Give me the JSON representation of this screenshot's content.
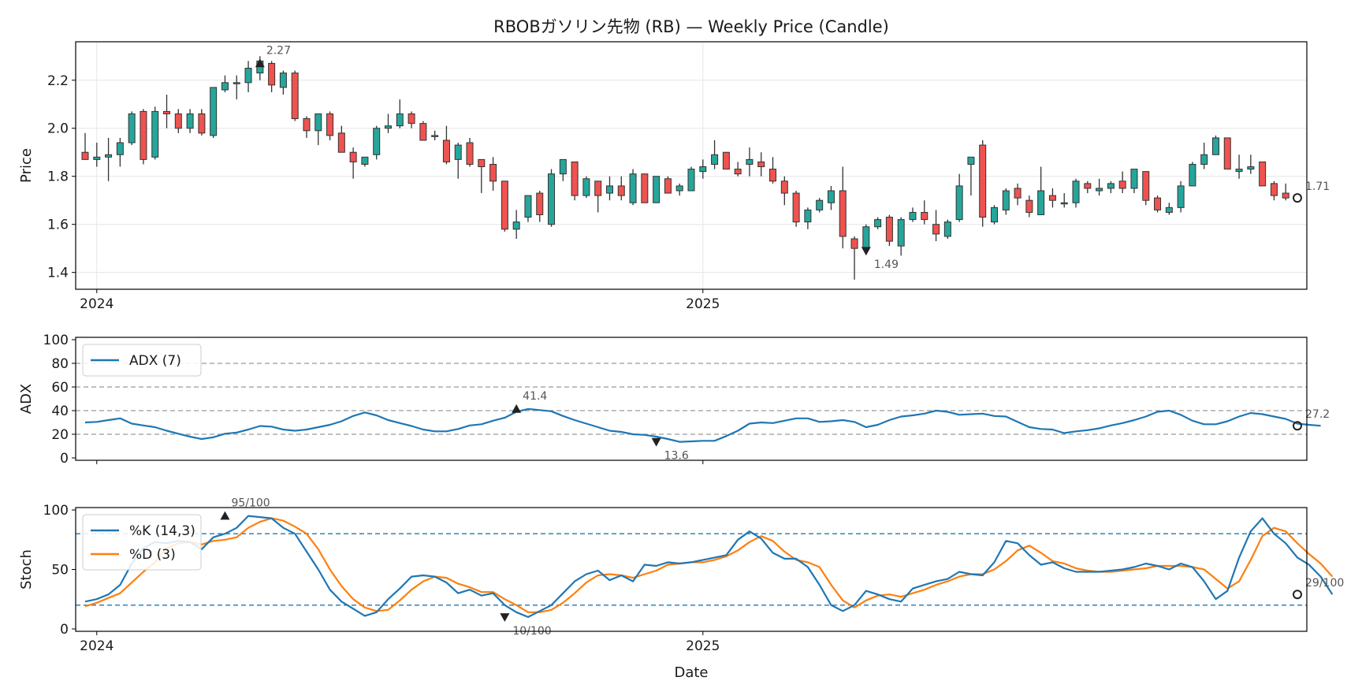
{
  "title": "RBOBガソリン先物 (RB) — Weekly Price (Candle)",
  "colors": {
    "up": "#26a69a",
    "down": "#ef5350",
    "wick": "#333333",
    "adx": "#1f77b4",
    "k": "#1f77b4",
    "d": "#ff7f0e",
    "ref": "#999999",
    "stoch_ref": "#1f77b4"
  },
  "chart_data": [
    {
      "type": "candlestick",
      "ylabel": "Price",
      "ylim": [
        1.33,
        2.36
      ],
      "yticks": [
        "1.4",
        "1.6",
        "1.8",
        "2.0",
        "2.2"
      ],
      "xticks": [
        {
          "index": 1,
          "label": "2024"
        },
        {
          "index": 53,
          "label": "2025"
        }
      ],
      "grid": true,
      "candles": [
        {
          "o": 1.9,
          "h": 1.98,
          "l": 1.87,
          "c": 1.87
        },
        {
          "o": 1.87,
          "h": 1.94,
          "l": 1.84,
          "c": 1.88
        },
        {
          "o": 1.88,
          "h": 1.96,
          "l": 1.78,
          "c": 1.89
        },
        {
          "o": 1.89,
          "h": 1.96,
          "l": 1.84,
          "c": 1.94
        },
        {
          "o": 1.94,
          "h": 2.07,
          "l": 1.93,
          "c": 2.06
        },
        {
          "o": 2.07,
          "h": 2.08,
          "l": 1.85,
          "c": 1.87
        },
        {
          "o": 1.88,
          "h": 2.09,
          "l": 1.87,
          "c": 2.07
        },
        {
          "o": 2.07,
          "h": 2.14,
          "l": 2.0,
          "c": 2.06
        },
        {
          "o": 2.06,
          "h": 2.08,
          "l": 1.98,
          "c": 2.0
        },
        {
          "o": 2.0,
          "h": 2.08,
          "l": 1.98,
          "c": 2.06
        },
        {
          "o": 2.06,
          "h": 2.08,
          "l": 1.97,
          "c": 1.98
        },
        {
          "o": 1.97,
          "h": 2.17,
          "l": 1.96,
          "c": 2.17
        },
        {
          "o": 2.16,
          "h": 2.22,
          "l": 2.15,
          "c": 2.19
        },
        {
          "o": 2.19,
          "h": 2.22,
          "l": 2.12,
          "c": 2.19
        },
        {
          "o": 2.19,
          "h": 2.28,
          "l": 2.15,
          "c": 2.25
        },
        {
          "o": 2.23,
          "h": 2.3,
          "l": 2.2,
          "c": 2.28
        },
        {
          "o": 2.27,
          "h": 2.28,
          "l": 2.15,
          "c": 2.18
        },
        {
          "o": 2.17,
          "h": 2.24,
          "l": 2.14,
          "c": 2.23
        },
        {
          "o": 2.23,
          "h": 2.24,
          "l": 2.03,
          "c": 2.04
        },
        {
          "o": 2.04,
          "h": 2.05,
          "l": 1.96,
          "c": 1.99
        },
        {
          "o": 1.99,
          "h": 2.06,
          "l": 1.93,
          "c": 2.06
        },
        {
          "o": 2.06,
          "h": 2.07,
          "l": 1.95,
          "c": 1.97
        },
        {
          "o": 1.98,
          "h": 2.01,
          "l": 1.9,
          "c": 1.9
        },
        {
          "o": 1.9,
          "h": 1.92,
          "l": 1.79,
          "c": 1.86
        },
        {
          "o": 1.85,
          "h": 1.88,
          "l": 1.84,
          "c": 1.88
        },
        {
          "o": 1.89,
          "h": 2.01,
          "l": 1.87,
          "c": 2.0
        },
        {
          "o": 2.0,
          "h": 2.06,
          "l": 1.98,
          "c": 2.01
        },
        {
          "o": 2.01,
          "h": 2.12,
          "l": 2.0,
          "c": 2.06
        },
        {
          "o": 2.06,
          "h": 2.07,
          "l": 2.0,
          "c": 2.02
        },
        {
          "o": 2.02,
          "h": 2.03,
          "l": 1.95,
          "c": 1.95
        },
        {
          "o": 1.97,
          "h": 1.99,
          "l": 1.95,
          "c": 1.97
        },
        {
          "o": 1.95,
          "h": 2.01,
          "l": 1.85,
          "c": 1.86
        },
        {
          "o": 1.87,
          "h": 1.94,
          "l": 1.79,
          "c": 1.93
        },
        {
          "o": 1.94,
          "h": 1.96,
          "l": 1.84,
          "c": 1.85
        },
        {
          "o": 1.87,
          "h": 1.87,
          "l": 1.73,
          "c": 1.84
        },
        {
          "o": 1.85,
          "h": 1.88,
          "l": 1.74,
          "c": 1.78
        },
        {
          "o": 1.78,
          "h": 1.78,
          "l": 1.57,
          "c": 1.58
        },
        {
          "o": 1.58,
          "h": 1.66,
          "l": 1.54,
          "c": 1.61
        },
        {
          "o": 1.63,
          "h": 1.72,
          "l": 1.61,
          "c": 1.72
        },
        {
          "o": 1.73,
          "h": 1.74,
          "l": 1.61,
          "c": 1.64
        },
        {
          "o": 1.6,
          "h": 1.83,
          "l": 1.59,
          "c": 1.81
        },
        {
          "o": 1.81,
          "h": 1.87,
          "l": 1.78,
          "c": 1.87
        },
        {
          "o": 1.86,
          "h": 1.86,
          "l": 1.7,
          "c": 1.72
        },
        {
          "o": 1.72,
          "h": 1.8,
          "l": 1.71,
          "c": 1.79
        },
        {
          "o": 1.78,
          "h": 1.78,
          "l": 1.65,
          "c": 1.72
        },
        {
          "o": 1.73,
          "h": 1.8,
          "l": 1.7,
          "c": 1.76
        },
        {
          "o": 1.76,
          "h": 1.8,
          "l": 1.7,
          "c": 1.72
        },
        {
          "o": 1.69,
          "h": 1.83,
          "l": 1.68,
          "c": 1.81
        },
        {
          "o": 1.81,
          "h": 1.81,
          "l": 1.69,
          "c": 1.69
        },
        {
          "o": 1.69,
          "h": 1.8,
          "l": 1.69,
          "c": 1.8
        },
        {
          "o": 1.79,
          "h": 1.8,
          "l": 1.73,
          "c": 1.73
        },
        {
          "o": 1.74,
          "h": 1.77,
          "l": 1.72,
          "c": 1.76
        },
        {
          "o": 1.74,
          "h": 1.84,
          "l": 1.74,
          "c": 1.83
        },
        {
          "o": 1.82,
          "h": 1.87,
          "l": 1.79,
          "c": 1.84
        },
        {
          "o": 1.85,
          "h": 1.95,
          "l": 1.83,
          "c": 1.89
        },
        {
          "o": 1.9,
          "h": 1.9,
          "l": 1.83,
          "c": 1.83
        },
        {
          "o": 1.83,
          "h": 1.86,
          "l": 1.8,
          "c": 1.81
        },
        {
          "o": 1.85,
          "h": 1.92,
          "l": 1.8,
          "c": 1.87
        },
        {
          "o": 1.86,
          "h": 1.9,
          "l": 1.8,
          "c": 1.84
        },
        {
          "o": 1.83,
          "h": 1.88,
          "l": 1.77,
          "c": 1.78
        },
        {
          "o": 1.78,
          "h": 1.8,
          "l": 1.68,
          "c": 1.73
        },
        {
          "o": 1.73,
          "h": 1.74,
          "l": 1.59,
          "c": 1.61
        },
        {
          "o": 1.61,
          "h": 1.67,
          "l": 1.58,
          "c": 1.66
        },
        {
          "o": 1.66,
          "h": 1.71,
          "l": 1.65,
          "c": 1.7
        },
        {
          "o": 1.69,
          "h": 1.76,
          "l": 1.66,
          "c": 1.74
        },
        {
          "o": 1.74,
          "h": 1.84,
          "l": 1.5,
          "c": 1.55
        },
        {
          "o": 1.54,
          "h": 1.55,
          "l": 1.37,
          "c": 1.5
        },
        {
          "o": 1.5,
          "h": 1.6,
          "l": 1.5,
          "c": 1.59
        },
        {
          "o": 1.59,
          "h": 1.63,
          "l": 1.58,
          "c": 1.62
        },
        {
          "o": 1.63,
          "h": 1.64,
          "l": 1.51,
          "c": 1.53
        },
        {
          "o": 1.51,
          "h": 1.63,
          "l": 1.47,
          "c": 1.62
        },
        {
          "o": 1.62,
          "h": 1.67,
          "l": 1.61,
          "c": 1.65
        },
        {
          "o": 1.65,
          "h": 1.7,
          "l": 1.6,
          "c": 1.62
        },
        {
          "o": 1.6,
          "h": 1.66,
          "l": 1.53,
          "c": 1.56
        },
        {
          "o": 1.55,
          "h": 1.62,
          "l": 1.54,
          "c": 1.61
        },
        {
          "o": 1.62,
          "h": 1.81,
          "l": 1.61,
          "c": 1.76
        },
        {
          "o": 1.85,
          "h": 1.88,
          "l": 1.72,
          "c": 1.88
        },
        {
          "o": 1.93,
          "h": 1.95,
          "l": 1.59,
          "c": 1.63
        },
        {
          "o": 1.61,
          "h": 1.68,
          "l": 1.6,
          "c": 1.67
        },
        {
          "o": 1.66,
          "h": 1.75,
          "l": 1.64,
          "c": 1.74
        },
        {
          "o": 1.75,
          "h": 1.77,
          "l": 1.68,
          "c": 1.71
        },
        {
          "o": 1.7,
          "h": 1.72,
          "l": 1.63,
          "c": 1.65
        },
        {
          "o": 1.64,
          "h": 1.84,
          "l": 1.64,
          "c": 1.74
        },
        {
          "o": 1.72,
          "h": 1.75,
          "l": 1.67,
          "c": 1.7
        },
        {
          "o": 1.69,
          "h": 1.73,
          "l": 1.67,
          "c": 1.69
        },
        {
          "o": 1.69,
          "h": 1.79,
          "l": 1.67,
          "c": 1.78
        },
        {
          "o": 1.77,
          "h": 1.78,
          "l": 1.73,
          "c": 1.75
        },
        {
          "o": 1.74,
          "h": 1.79,
          "l": 1.72,
          "c": 1.75
        },
        {
          "o": 1.75,
          "h": 1.78,
          "l": 1.73,
          "c": 1.77
        },
        {
          "o": 1.78,
          "h": 1.82,
          "l": 1.73,
          "c": 1.75
        },
        {
          "o": 1.75,
          "h": 1.83,
          "l": 1.73,
          "c": 1.83
        },
        {
          "o": 1.82,
          "h": 1.82,
          "l": 1.68,
          "c": 1.7
        },
        {
          "o": 1.71,
          "h": 1.72,
          "l": 1.65,
          "c": 1.66
        },
        {
          "o": 1.65,
          "h": 1.69,
          "l": 1.64,
          "c": 1.67
        },
        {
          "o": 1.67,
          "h": 1.78,
          "l": 1.65,
          "c": 1.76
        },
        {
          "o": 1.76,
          "h": 1.86,
          "l": 1.76,
          "c": 1.85
        },
        {
          "o": 1.85,
          "h": 1.94,
          "l": 1.83,
          "c": 1.89
        },
        {
          "o": 1.89,
          "h": 1.97,
          "l": 1.89,
          "c": 1.96
        },
        {
          "o": 1.96,
          "h": 1.96,
          "l": 1.83,
          "c": 1.83
        },
        {
          "o": 1.82,
          "h": 1.89,
          "l": 1.79,
          "c": 1.83
        },
        {
          "o": 1.83,
          "h": 1.89,
          "l": 1.81,
          "c": 1.84
        },
        {
          "o": 1.86,
          "h": 1.86,
          "l": 1.76,
          "c": 1.76
        },
        {
          "o": 1.77,
          "h": 1.78,
          "l": 1.7,
          "c": 1.72
        },
        {
          "o": 1.73,
          "h": 1.77,
          "l": 1.7,
          "c": 1.71
        }
      ],
      "annotations": [
        {
          "index": 15,
          "value": 2.27,
          "label": "2.27",
          "marker": "up"
        },
        {
          "index": 67,
          "value": 1.49,
          "label": "1.49",
          "marker": "down"
        },
        {
          "index": 104,
          "value": 1.71,
          "label": "1.71",
          "marker": "last"
        }
      ]
    },
    {
      "type": "line",
      "ylabel": "ADX",
      "ylim": [
        -2,
        102
      ],
      "yticks": [
        "0",
        "20",
        "40",
        "60",
        "80",
        "100"
      ],
      "ref_lines": [
        20,
        40,
        60,
        80
      ],
      "legend": "top-left",
      "series": [
        {
          "name": "ADX (7)",
          "values": [
            30,
            30.5,
            32,
            33.5,
            29,
            27.5,
            26,
            23,
            20.5,
            18,
            16,
            17.5,
            20.5,
            21.5,
            24,
            27,
            26.5,
            24,
            23,
            24,
            26,
            28,
            31,
            35.5,
            38.5,
            36,
            32,
            29.5,
            27,
            24,
            22.5,
            22.5,
            24.5,
            27.5,
            28.5,
            31.5,
            34,
            39,
            41.4,
            40.5,
            39.5,
            35.5,
            32,
            29,
            26,
            23,
            22,
            20,
            19.5,
            18,
            16,
            13.6,
            14,
            14.5,
            14.5,
            18.5,
            23,
            29,
            30,
            29.5,
            31.5,
            33.5,
            33.5,
            30.5,
            31,
            32,
            30.5,
            26,
            28,
            32,
            35,
            36,
            37.5,
            40,
            39,
            36.5,
            37,
            37.5,
            35.5,
            35,
            30.5,
            26,
            24.5,
            24,
            21,
            22.5,
            23.5,
            25,
            27.5,
            29.5,
            32,
            35,
            39,
            40,
            36.5,
            31.5,
            28.5,
            28.5,
            31,
            35,
            38,
            37,
            35,
            33,
            29,
            28,
            27.2
          ]
        }
      ],
      "annotations": [
        {
          "index": 37,
          "value": 41.4,
          "label": "41.4",
          "marker": "up"
        },
        {
          "index": 49,
          "value": 13.6,
          "label": "13.6",
          "marker": "down"
        },
        {
          "index": 104,
          "value": 27.2,
          "label": "27.2",
          "marker": "last"
        }
      ]
    },
    {
      "type": "line",
      "ylabel": "Stoch",
      "xlabel": "Date",
      "ylim": [
        -2,
        102
      ],
      "yticks": [
        "0",
        "50",
        "100"
      ],
      "xticks": [
        {
          "index": 1,
          "label": "2024"
        },
        {
          "index": 53,
          "label": "2025"
        }
      ],
      "ref_lines": [
        20,
        80
      ],
      "legend": "top-left",
      "series": [
        {
          "name": "%K (14,3)",
          "values": [
            23,
            25,
            29,
            37,
            55,
            68,
            73,
            72,
            74,
            73,
            67,
            77,
            80,
            85,
            95,
            94,
            93,
            85,
            80,
            65,
            50,
            33,
            23,
            17,
            11,
            14,
            25,
            34,
            44,
            45,
            44,
            39,
            30,
            33,
            28,
            30,
            20,
            14,
            10,
            15,
            20,
            30,
            40,
            46,
            49,
            41,
            45,
            40,
            54,
            53,
            56,
            55,
            56,
            58,
            60,
            62,
            75,
            82,
            76,
            64,
            59,
            59,
            52,
            37,
            20,
            15,
            20,
            32,
            29,
            25,
            23,
            34,
            37,
            40,
            42,
            48,
            46,
            45,
            56,
            74,
            72,
            62,
            54,
            56,
            51,
            48,
            48,
            48,
            49,
            50,
            52,
            55,
            53,
            50,
            55,
            52,
            40,
            25,
            32,
            60,
            82,
            93,
            80,
            72,
            60,
            54,
            44,
            29
          ]
        },
        {
          "name": "%D (3)",
          "values": [
            19,
            22,
            26,
            30,
            39,
            48,
            56,
            68,
            72,
            73,
            71,
            74,
            75,
            77,
            85,
            90,
            93,
            91,
            86,
            80,
            67,
            50,
            36,
            25,
            18,
            15,
            16,
            24,
            33,
            40,
            44,
            43,
            38,
            35,
            31,
            31,
            25,
            20,
            14,
            14,
            16,
            22,
            30,
            39,
            45,
            46,
            45,
            43,
            46,
            49,
            54,
            55,
            56,
            56,
            58,
            61,
            66,
            73,
            78,
            74,
            65,
            58,
            56,
            52,
            37,
            24,
            18,
            24,
            28,
            29,
            27,
            30,
            33,
            37,
            40,
            44,
            46,
            46,
            50,
            57,
            66,
            70,
            64,
            57,
            55,
            51,
            49,
            48,
            48,
            49,
            50,
            51,
            53,
            53,
            53,
            52,
            50,
            42,
            34,
            40,
            58,
            78,
            85,
            82,
            72,
            63,
            55,
            44
          ]
        }
      ],
      "annotations": [
        {
          "index": 12,
          "value": 95,
          "label": "95/100",
          "marker": "up"
        },
        {
          "index": 36,
          "value": 10,
          "label": "10/100",
          "marker": "down"
        },
        {
          "index": 104,
          "value": 29,
          "label": "29/100",
          "marker": "last"
        }
      ]
    }
  ]
}
